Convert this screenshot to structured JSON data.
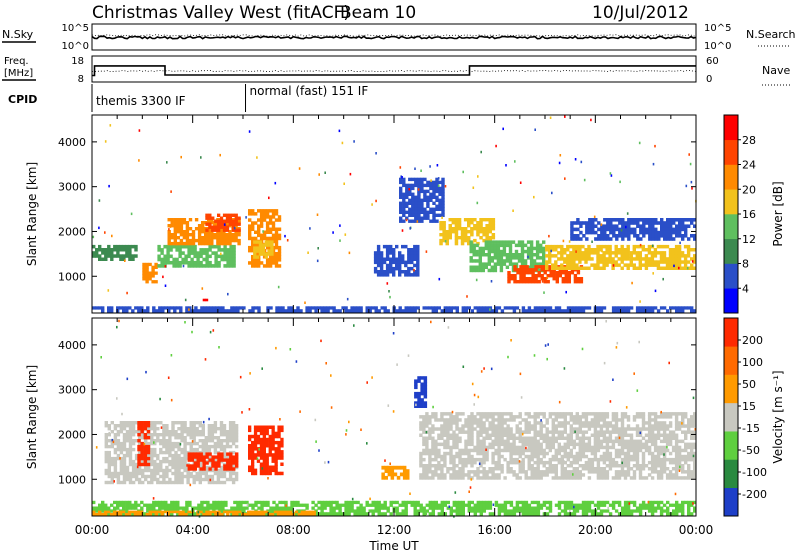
{
  "header": {
    "station": "Christmas Valley West (fitACF)",
    "beam": "Beam 10",
    "date": "10/Jul/2012"
  },
  "top_strip": {
    "nsky_label": "N.Sky",
    "nsearch_label": "N.Search",
    "freq_label_1": "Freq.",
    "freq_label_2": "[MHz]",
    "nave_label": "Nave",
    "cpid_label": "CPID",
    "noise_ticks_left": [
      "10^5",
      "10^0"
    ],
    "noise_ticks_right": [
      "10^5",
      "10^0"
    ],
    "freq_ticks": [
      "18",
      "8"
    ],
    "nave_ticks": [
      "60",
      "0"
    ],
    "cpid_segments": [
      {
        "label": "themis 3300 IF",
        "start_h": 0.0,
        "end_h": 6.1
      },
      {
        "label": "normal (fast) 151 IF",
        "start_h": 6.1,
        "end_h": 24.0
      }
    ],
    "freq_steps": [
      {
        "start_h": 0.0,
        "end_h": 0.1,
        "mhz": 10.5
      },
      {
        "start_h": 0.1,
        "end_h": 2.9,
        "mhz": 14.2
      },
      {
        "start_h": 2.9,
        "end_h": 6.1,
        "mhz": 10.7
      },
      {
        "start_h": 6.1,
        "end_h": 15.0,
        "mhz": 10.7
      },
      {
        "start_h": 15.0,
        "end_h": 24.0,
        "mhz": 14.2
      }
    ]
  },
  "chart_data": [
    {
      "type": "heatmap",
      "name": "power",
      "xlabel": "",
      "ylabel": "Slant Range [km]",
      "xlim_hours": [
        0,
        24
      ],
      "ylim": [
        180,
        4600
      ],
      "yticks": [
        "4000",
        "3000",
        "2000",
        "1000"
      ],
      "ytick_values": [
        4000,
        3000,
        2000,
        1000
      ],
      "colorbar": {
        "label": "Power [dB]",
        "tick_labels": [
          "28",
          "24",
          "20",
          "16",
          "12",
          "8",
          "4"
        ],
        "colors": [
          "#0000ff",
          "#2a4fc8",
          "#3c8a50",
          "#5fbf5f",
          "#f2c21c",
          "#ff8a00",
          "#ff4400",
          "#ff0000"
        ],
        "range": [
          0,
          32
        ]
      },
      "regions": [
        {
          "t0": 0.0,
          "t1": 1.8,
          "r0": 1350,
          "r1": 1700,
          "color": "#3c8a50"
        },
        {
          "t0": 2.0,
          "t1": 2.6,
          "r0": 850,
          "r1": 1300,
          "color": "#ff8a00"
        },
        {
          "t0": 2.6,
          "t1": 5.7,
          "r0": 1200,
          "r1": 1700,
          "color": "#5fbf5f"
        },
        {
          "t0": 3.0,
          "t1": 5.9,
          "r0": 1700,
          "r1": 2300,
          "color": "#ff8a00"
        },
        {
          "t0": 4.5,
          "t1": 5.9,
          "r0": 2000,
          "r1": 2400,
          "color": "#ff4400"
        },
        {
          "t0": 6.2,
          "t1": 7.5,
          "r0": 1200,
          "r1": 2500,
          "color": "#ff8a00"
        },
        {
          "t0": 6.4,
          "t1": 7.2,
          "r0": 1400,
          "r1": 1800,
          "color": "#f2c21c"
        },
        {
          "t0": 11.2,
          "t1": 13.0,
          "r0": 1000,
          "r1": 1700,
          "color": "#2a4fc8"
        },
        {
          "t0": 12.2,
          "t1": 14.0,
          "r0": 2200,
          "r1": 3200,
          "color": "#2a4fc8"
        },
        {
          "t0": 13.8,
          "t1": 16.0,
          "r0": 1700,
          "r1": 2300,
          "color": "#f2c21c"
        },
        {
          "t0": 15.0,
          "t1": 18.0,
          "r0": 1100,
          "r1": 1800,
          "color": "#5fbf5f"
        },
        {
          "t0": 16.5,
          "t1": 19.5,
          "r0": 850,
          "r1": 1250,
          "color": "#ff4400"
        },
        {
          "t0": 18.0,
          "t1": 24.0,
          "r0": 1150,
          "r1": 1700,
          "color": "#f2c21c"
        },
        {
          "t0": 19.0,
          "t1": 24.0,
          "r0": 1800,
          "r1": 2300,
          "color": "#2a4fc8"
        },
        {
          "t0": 0.0,
          "t1": 24.0,
          "r0": 200,
          "r1": 330,
          "color": "#2a4fc8"
        },
        {
          "t0": 4.4,
          "t1": 4.6,
          "r0": 400,
          "r1": 500,
          "color": "#ff0000"
        }
      ]
    },
    {
      "type": "heatmap",
      "name": "velocity",
      "xlabel": "Time UT",
      "ylabel": "Slant Range [km]",
      "xlim_hours": [
        0,
        24
      ],
      "ylim": [
        180,
        4600
      ],
      "xticks": [
        "00:00",
        "04:00",
        "08:00",
        "12:00",
        "16:00",
        "20:00",
        "00:00"
      ],
      "xtick_hours": [
        0,
        4,
        8,
        12,
        16,
        20,
        24
      ],
      "yticks": [
        "4000",
        "3000",
        "2000",
        "1000"
      ],
      "ytick_values": [
        4000,
        3000,
        2000,
        1000
      ],
      "colorbar": {
        "label": "Velocity [m s⁻¹]",
        "tick_labels": [
          "200",
          "100",
          "50",
          "15",
          "-15",
          "-50",
          "-100",
          "-200"
        ],
        "colors": [
          "#1e3fc8",
          "#2a8a40",
          "#5fcf3f",
          "#c8c8c0",
          "#ff9a00",
          "#ff6a00",
          "#ff2a00"
        ],
        "range": [
          -250,
          250
        ]
      },
      "regions": [
        {
          "t0": 0.5,
          "t1": 5.8,
          "r0": 1500,
          "r1": 2300,
          "color": "#c8c8c0"
        },
        {
          "t0": 0.5,
          "t1": 5.8,
          "r0": 900,
          "r1": 1500,
          "color": "#c8c8c0"
        },
        {
          "t0": 1.8,
          "t1": 2.3,
          "r0": 1300,
          "r1": 2300,
          "color": "#ff2a00"
        },
        {
          "t0": 3.8,
          "t1": 5.8,
          "r0": 1200,
          "r1": 1600,
          "color": "#ff2a00"
        },
        {
          "t0": 6.2,
          "t1": 7.6,
          "r0": 1100,
          "r1": 2200,
          "color": "#ff2a00"
        },
        {
          "t0": 11.5,
          "t1": 12.6,
          "r0": 1000,
          "r1": 1300,
          "color": "#ff9a00"
        },
        {
          "t0": 13.0,
          "t1": 24.0,
          "r0": 1000,
          "r1": 2500,
          "color": "#c8c8c0"
        },
        {
          "t0": 12.8,
          "t1": 13.3,
          "r0": 2600,
          "r1": 3300,
          "color": "#1e3fc8"
        },
        {
          "t0": 0.0,
          "t1": 24.0,
          "r0": 200,
          "r1": 520,
          "color": "#5fcf3f"
        },
        {
          "t0": 0.0,
          "t1": 9.0,
          "r0": 200,
          "r1": 300,
          "color": "#ff9a00"
        }
      ]
    }
  ]
}
